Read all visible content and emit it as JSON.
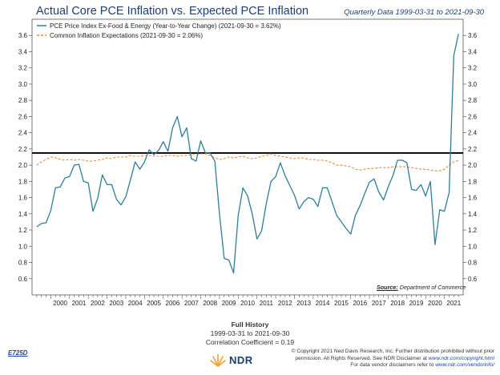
{
  "header": {
    "title": "Actual Core PCE Inflation vs. Expected PCE Inflation",
    "subtitle": "Quarterly Data 1999-03-31 to 2021-09-30"
  },
  "colors": {
    "pce": "#2e7d9a",
    "expectations": "#f0883a",
    "reference_line": "#000000",
    "title": "#1c3f73"
  },
  "chart_data": {
    "type": "line",
    "legend_placement": "top-left",
    "grid": false,
    "ylim": [
      0.4,
      3.8
    ],
    "y_ticks": [
      "0.6",
      "0.8",
      "1.0",
      "1.2",
      "1.4",
      "1.6",
      "1.8",
      "2.0",
      "2.2",
      "2.4",
      "2.6",
      "2.8",
      "3.0",
      "3.2",
      "3.4",
      "3.6"
    ],
    "x_ticks": [
      "2000",
      "2001",
      "2002",
      "2003",
      "2004",
      "2005",
      "2006",
      "2007",
      "2008",
      "2009",
      "2010",
      "2011",
      "2012",
      "2013",
      "2014",
      "2015",
      "2016",
      "2017",
      "2018",
      "2019",
      "2020",
      "2021"
    ],
    "reference_line": 2.15,
    "series": [
      {
        "name": "PCE Price Index Ex-Food & Energy (Year-to-Year Change) (2021-09-30 = 3.62%)",
        "color": "#2e7d9a",
        "dash": "solid",
        "x": [
          1999.25,
          1999.5,
          1999.75,
          2000,
          2000.25,
          2000.5,
          2000.75,
          2001,
          2001.25,
          2001.5,
          2001.75,
          2002,
          2002.25,
          2002.5,
          2002.75,
          2003,
          2003.25,
          2003.5,
          2003.75,
          2004,
          2004.25,
          2004.5,
          2004.75,
          2005,
          2005.25,
          2005.5,
          2005.75,
          2006,
          2006.25,
          2006.5,
          2006.75,
          2007,
          2007.25,
          2007.5,
          2007.75,
          2008,
          2008.25,
          2008.5,
          2008.75,
          2009,
          2009.25,
          2009.5,
          2009.75,
          2010,
          2010.25,
          2010.5,
          2010.75,
          2011,
          2011.25,
          2011.5,
          2011.75,
          2012,
          2012.25,
          2012.5,
          2012.75,
          2013,
          2013.25,
          2013.5,
          2013.75,
          2014,
          2014.25,
          2014.5,
          2014.75,
          2015,
          2015.25,
          2015.5,
          2015.75,
          2016,
          2016.25,
          2016.5,
          2016.75,
          2017,
          2017.25,
          2017.5,
          2017.75,
          2018,
          2018.25,
          2018.5,
          2018.75,
          2019,
          2019.25,
          2019.5,
          2019.75,
          2020,
          2020.25,
          2020.5,
          2020.75,
          2021,
          2021.25,
          2021.5,
          2021.75
        ],
        "values": [
          1.24,
          1.28,
          1.29,
          1.44,
          1.72,
          1.73,
          1.84,
          1.86,
          2.0,
          2.01,
          1.8,
          1.78,
          1.43,
          1.59,
          1.88,
          1.76,
          1.76,
          1.58,
          1.51,
          1.61,
          1.82,
          2.04,
          1.95,
          2.04,
          2.19,
          2.13,
          2.18,
          2.29,
          2.17,
          2.46,
          2.6,
          2.35,
          2.46,
          2.08,
          2.05,
          2.3,
          2.15,
          2.15,
          2.05,
          1.4,
          0.85,
          0.83,
          0.67,
          1.38,
          1.72,
          1.62,
          1.4,
          1.09,
          1.19,
          1.53,
          1.8,
          1.86,
          2.03,
          1.87,
          1.75,
          1.63,
          1.46,
          1.55,
          1.6,
          1.58,
          1.49,
          1.72,
          1.72,
          1.55,
          1.38,
          1.3,
          1.22,
          1.15,
          1.38,
          1.5,
          1.65,
          1.79,
          1.83,
          1.67,
          1.57,
          1.73,
          1.87,
          2.06,
          2.06,
          2.03,
          1.7,
          1.69,
          1.76,
          1.62,
          1.8,
          1.02,
          1.45,
          1.43,
          1.66,
          3.35,
          3.62
        ]
      },
      {
        "name": "Common Inflation Expectations (2021-09-30 = 2.06%)",
        "color": "#f0883a",
        "dash": "dashed",
        "x": [
          1999.25,
          1999.5,
          1999.75,
          2000,
          2000.25,
          2000.5,
          2000.75,
          2001,
          2001.25,
          2001.5,
          2001.75,
          2002,
          2002.25,
          2002.5,
          2002.75,
          2003,
          2003.25,
          2003.5,
          2003.75,
          2004,
          2004.25,
          2004.5,
          2004.75,
          2005,
          2005.25,
          2005.5,
          2005.75,
          2006,
          2006.25,
          2006.5,
          2006.75,
          2007,
          2007.25,
          2007.5,
          2007.75,
          2008,
          2008.25,
          2008.5,
          2008.75,
          2009,
          2009.25,
          2009.5,
          2009.75,
          2010,
          2010.25,
          2010.5,
          2010.75,
          2011,
          2011.25,
          2011.5,
          2011.75,
          2012,
          2012.25,
          2012.5,
          2012.75,
          2013,
          2013.25,
          2013.5,
          2013.75,
          2014,
          2014.25,
          2014.5,
          2014.75,
          2015,
          2015.25,
          2015.5,
          2015.75,
          2016,
          2016.25,
          2016.5,
          2016.75,
          2017,
          2017.25,
          2017.5,
          2017.75,
          2018,
          2018.25,
          2018.5,
          2018.75,
          2019,
          2019.25,
          2019.5,
          2019.75,
          2020,
          2020.25,
          2020.5,
          2020.75,
          2021,
          2021.25,
          2021.5,
          2021.75
        ],
        "values": [
          2.0,
          2.04,
          2.07,
          2.1,
          2.09,
          2.07,
          2.06,
          2.07,
          2.06,
          2.07,
          2.06,
          2.05,
          2.05,
          2.06,
          2.07,
          2.09,
          2.08,
          2.1,
          2.1,
          2.1,
          2.12,
          2.11,
          2.11,
          2.12,
          2.12,
          2.11,
          2.11,
          2.11,
          2.12,
          2.12,
          2.11,
          2.12,
          2.12,
          2.13,
          2.13,
          2.14,
          2.14,
          2.12,
          2.09,
          2.07,
          2.08,
          2.1,
          2.09,
          2.1,
          2.11,
          2.09,
          2.08,
          2.09,
          2.11,
          2.12,
          2.14,
          2.12,
          2.11,
          2.1,
          2.09,
          2.08,
          2.09,
          2.09,
          2.07,
          2.07,
          2.06,
          2.06,
          2.05,
          2.03,
          2.0,
          2.0,
          1.99,
          1.98,
          1.95,
          1.94,
          1.95,
          1.96,
          1.96,
          1.97,
          1.97,
          1.97,
          1.98,
          1.98,
          1.98,
          1.98,
          1.97,
          1.96,
          1.95,
          1.95,
          1.94,
          1.93,
          1.93,
          1.95,
          2.0,
          2.04,
          2.06
        ]
      }
    ]
  },
  "source": {
    "label": "Source:",
    "value": "Department of Commerce"
  },
  "footer": {
    "history_title": "Full History",
    "date_range": "1999-03-31 to 2021-09-30",
    "correlation": "Correlation Coefficient = 0.19",
    "code": "E725D",
    "logo": "NDR",
    "copyright_1": "© Copyright 2021 Ned Davis Research, Inc. Further distribution prohibited without prior",
    "copyright_2a": "permission. All Rights Reserved. See NDR Disclaimer at ",
    "copyright_link1": "www.ndr.com/copyright.html",
    "copyright_3a": "For data vendor disclaimers refer to ",
    "copyright_link2": "www.ndr.com/vendorinfo/"
  }
}
